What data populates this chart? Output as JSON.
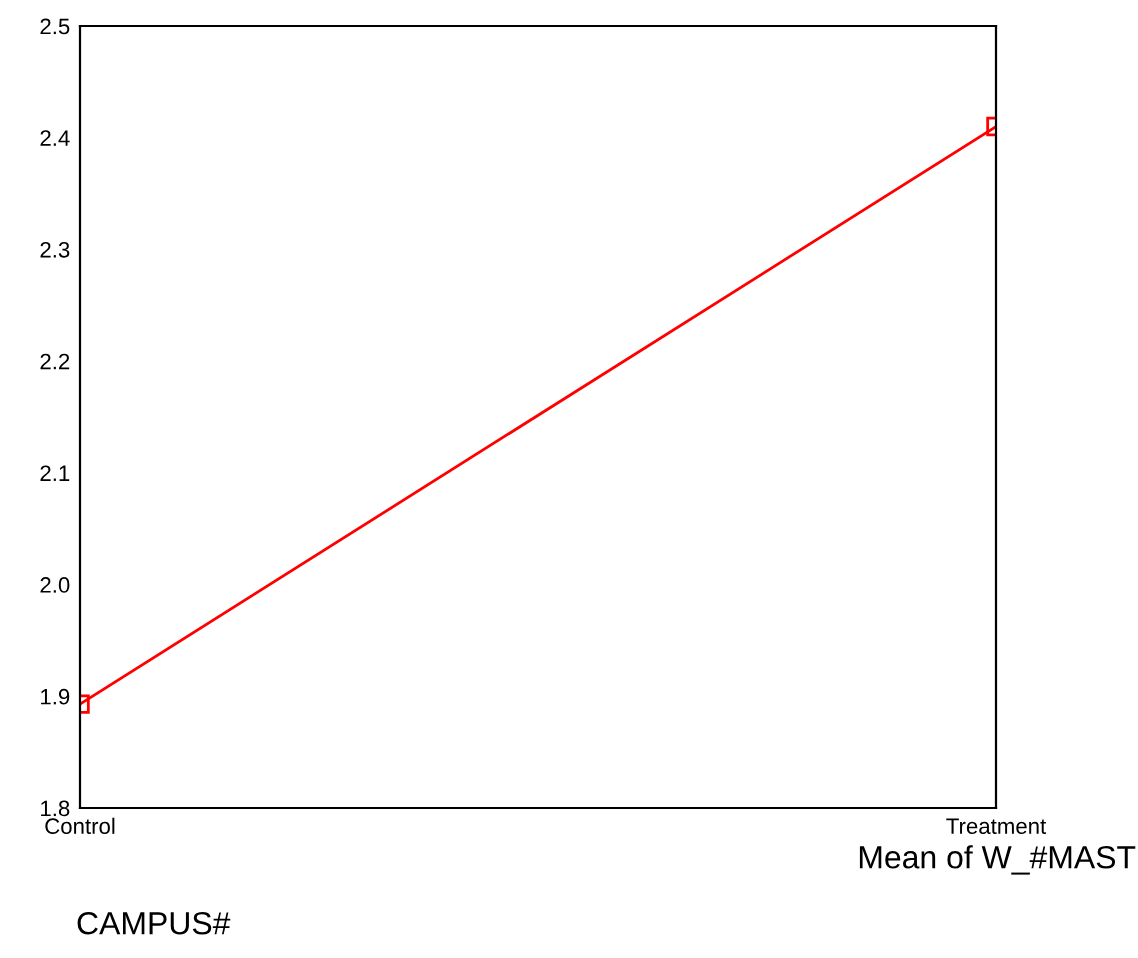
{
  "chart_data": {
    "type": "line",
    "categories": [
      "Control",
      "Treatment"
    ],
    "series": [
      {
        "color": "#ff0000",
        "values": [
          1.893,
          2.41
        ]
      }
    ],
    "annotations": [
      "Mean of W_#MAST"
    ],
    "xlabel": "CAMPUS#",
    "ylim": [
      1.8,
      2.5
    ],
    "yticks": [
      1.8,
      1.9,
      {
        "value": 2.0,
        "label": "2.0"
      },
      2.1,
      2.2,
      2.3,
      2.4,
      2.5
    ],
    "marker": "square",
    "line_style": "solid",
    "legend": false
  }
}
